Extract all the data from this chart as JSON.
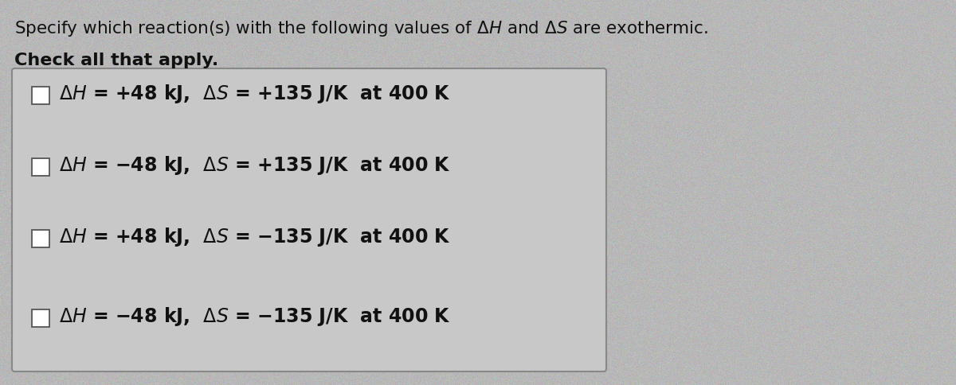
{
  "title_plain": "Specify which reaction(s) with the following values of ",
  "title_end": " are exothermic.",
  "subtitle": "Check all that apply.",
  "bg_color": "#b8b8b8",
  "box_bg_color": "#c8c8c8",
  "box_edge_color": "#888888",
  "text_color": "#111111",
  "options": [
    {
      "dh_sign": "+",
      "dh_val": "48",
      "ds_sign": "+",
      "ds_val": "135",
      "temp": "400"
    },
    {
      "dh_sign": "−",
      "dh_val": "48",
      "ds_sign": "+",
      "ds_val": "135",
      "temp": "400"
    },
    {
      "dh_sign": "+",
      "dh_val": "48",
      "ds_sign": "−",
      "ds_val": "135",
      "temp": "400"
    },
    {
      "dh_sign": "−",
      "dh_val": "48",
      "ds_sign": "−",
      "ds_val": "135",
      "temp": "400"
    }
  ],
  "title_fontsize": 15.5,
  "subtitle_fontsize": 16,
  "option_fontsize": 17,
  "figsize": [
    12.0,
    4.84
  ],
  "dpi": 100
}
